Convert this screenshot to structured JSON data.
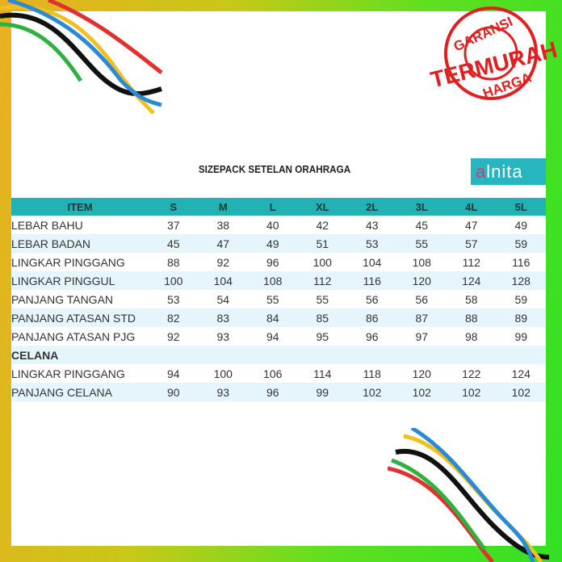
{
  "title": "SIZEPACK SETELAN ORAHRAGA",
  "logo": {
    "text": "alnita"
  },
  "stamp": {
    "top": "GARANSI",
    "middle": "TERMURAH",
    "bottom": "HARGA",
    "color": "#e02020"
  },
  "colors": {
    "header": "#22b2b4",
    "row_alt": "#e6f4fb"
  },
  "table": {
    "headers": [
      "ITEM",
      "S",
      "M",
      "L",
      "XL",
      "2L",
      "3L",
      "4L",
      "5L"
    ],
    "rows": [
      {
        "item": "LEBAR BAHU",
        "values": [
          "37",
          "38",
          "40",
          "42",
          "43",
          "45",
          "47",
          "49"
        ]
      },
      {
        "item": "LEBAR BADAN",
        "values": [
          "45",
          "47",
          "49",
          "51",
          "53",
          "55",
          "57",
          "59"
        ]
      },
      {
        "item": "LINGKAR PINGGANG",
        "values": [
          "88",
          "92",
          "96",
          "100",
          "104",
          "108",
          "112",
          "116"
        ]
      },
      {
        "item": "LINGKAR PINGGUL",
        "values": [
          "100",
          "104",
          "108",
          "112",
          "116",
          "120",
          "124",
          "128"
        ]
      },
      {
        "item": "PANJANG TANGAN",
        "values": [
          "53",
          "54",
          "55",
          "55",
          "56",
          "56",
          "58",
          "59"
        ]
      },
      {
        "item": "PANJANG ATASAN STD",
        "values": [
          "82",
          "83",
          "84",
          "85",
          "86",
          "87",
          "88",
          "89"
        ]
      },
      {
        "item": "PANJANG ATASAN PJG",
        "values": [
          "92",
          "93",
          "94",
          "95",
          "96",
          "97",
          "98",
          "99"
        ]
      }
    ],
    "section": "CELANA",
    "rows2": [
      {
        "item": "LINGKAR PINGGANG",
        "values": [
          "94",
          "100",
          "106",
          "114",
          "118",
          "120",
          "122",
          "124"
        ]
      },
      {
        "item": "PANJANG CELANA",
        "values": [
          "90",
          "93",
          "96",
          "99",
          "102",
          "102",
          "102",
          "102"
        ]
      }
    ]
  }
}
